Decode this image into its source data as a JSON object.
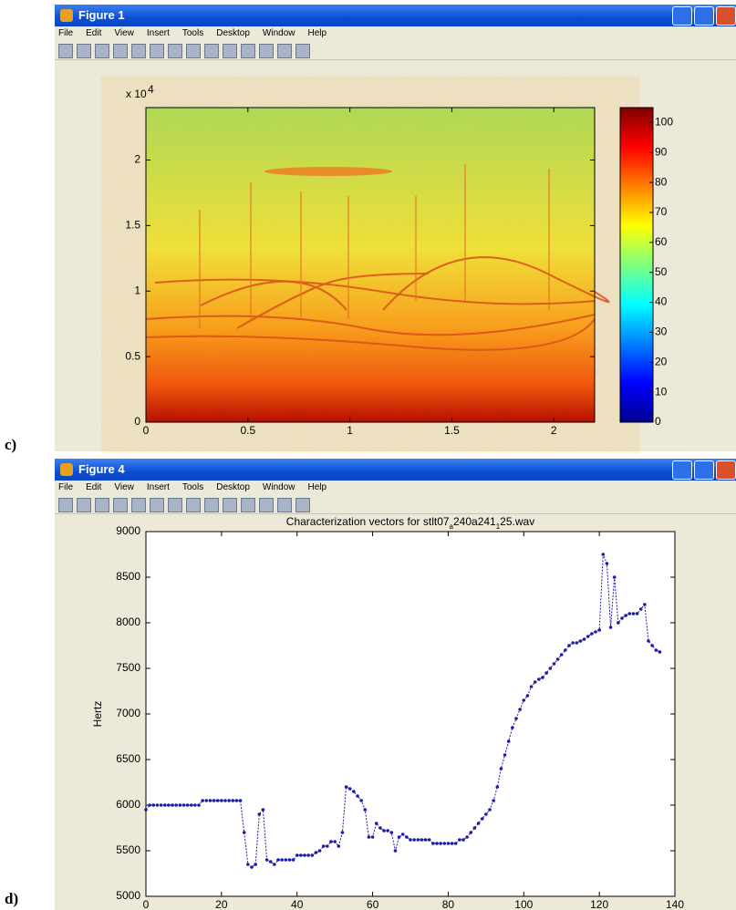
{
  "figure1": {
    "title": "Figure 1",
    "menu": [
      "File",
      "Edit",
      "View",
      "Insert",
      "Tools",
      "Desktop",
      "Window",
      "Help"
    ],
    "panel_label": "c)",
    "chart": {
      "type": "heatmap",
      "exponent_base": "x 10",
      "exponent": "4",
      "xlim": [
        0,
        2.2
      ],
      "xticks": [
        0,
        0.5,
        1,
        1.5,
        2
      ],
      "ylim": [
        0,
        2.4
      ],
      "yticks": [
        0,
        0.5,
        1,
        1.5,
        2
      ],
      "colorbar": {
        "lim": [
          0,
          105
        ],
        "ticks": [
          0,
          10,
          20,
          30,
          40,
          50,
          60,
          70,
          80,
          90,
          100
        ]
      }
    }
  },
  "figure4": {
    "title": "Figure 4",
    "menu": [
      "File",
      "Edit",
      "View",
      "Insert",
      "Tools",
      "Desktop",
      "Window",
      "Help"
    ],
    "panel_label": "d)",
    "chart": {
      "type": "line",
      "title_parts": [
        "Characterization vectors for stlt07",
        "a",
        "240a241",
        "1",
        "25.wav"
      ],
      "ylabel": "Hertz",
      "xlim": [
        0,
        140
      ],
      "xticks": [
        0,
        20,
        40,
        60,
        80,
        100,
        120,
        140
      ],
      "ylim": [
        5000,
        9000
      ],
      "yticks": [
        5000,
        5500,
        6000,
        6500,
        7000,
        7500,
        8000,
        8500,
        9000
      ],
      "color": "#1c1ca8",
      "x": [
        0,
        1,
        2,
        3,
        4,
        5,
        6,
        7,
        8,
        9,
        10,
        11,
        12,
        13,
        14,
        15,
        16,
        17,
        18,
        19,
        20,
        21,
        22,
        23,
        24,
        25,
        26,
        27,
        28,
        29,
        30,
        31,
        32,
        33,
        34,
        35,
        36,
        37,
        38,
        39,
        40,
        41,
        42,
        43,
        44,
        45,
        46,
        47,
        48,
        49,
        50,
        51,
        52,
        53,
        54,
        55,
        56,
        57,
        58,
        59,
        60,
        61,
        62,
        63,
        64,
        65,
        66,
        67,
        68,
        69,
        70,
        71,
        72,
        73,
        74,
        75,
        76,
        77,
        78,
        79,
        80,
        81,
        82,
        83,
        84,
        85,
        86,
        87,
        88,
        89,
        90,
        91,
        92,
        93,
        94,
        95,
        96,
        97,
        98,
        99,
        100,
        101,
        102,
        103,
        104,
        105,
        106,
        107,
        108,
        109,
        110,
        111,
        112,
        113,
        114,
        115,
        116,
        117,
        118,
        119,
        120,
        121,
        122,
        123,
        124,
        125,
        126,
        127,
        128,
        129,
        130,
        131,
        132,
        133,
        134,
        135,
        136
      ],
      "values": [
        5950,
        6000,
        6000,
        6000,
        6000,
        6000,
        6000,
        6000,
        6000,
        6000,
        6000,
        6000,
        6000,
        6000,
        6000,
        6050,
        6050,
        6050,
        6050,
        6050,
        6050,
        6050,
        6050,
        6050,
        6050,
        6050,
        5700,
        5350,
        5320,
        5350,
        5900,
        5950,
        5400,
        5380,
        5350,
        5400,
        5400,
        5400,
        5400,
        5400,
        5450,
        5450,
        5450,
        5450,
        5450,
        5480,
        5500,
        5550,
        5550,
        5600,
        5600,
        5550,
        5700,
        6200,
        6180,
        6150,
        6100,
        6050,
        5950,
        5650,
        5650,
        5800,
        5750,
        5720,
        5720,
        5700,
        5500,
        5650,
        5680,
        5650,
        5620,
        5620,
        5620,
        5620,
        5620,
        5620,
        5580,
        5580,
        5580,
        5580,
        5580,
        5580,
        5580,
        5620,
        5620,
        5650,
        5700,
        5750,
        5800,
        5850,
        5900,
        5950,
        6050,
        6200,
        6400,
        6550,
        6700,
        6850,
        6950,
        7050,
        7150,
        7200,
        7300,
        7350,
        7380,
        7400,
        7450,
        7500,
        7550,
        7600,
        7650,
        7700,
        7750,
        7780,
        7780,
        7800,
        7820,
        7850,
        7880,
        7900,
        7920,
        8750,
        8650,
        7950,
        8500,
        8000,
        8050,
        8080,
        8100,
        8100,
        8100,
        8150,
        8200,
        7800,
        7750,
        7700,
        7680
      ]
    }
  }
}
